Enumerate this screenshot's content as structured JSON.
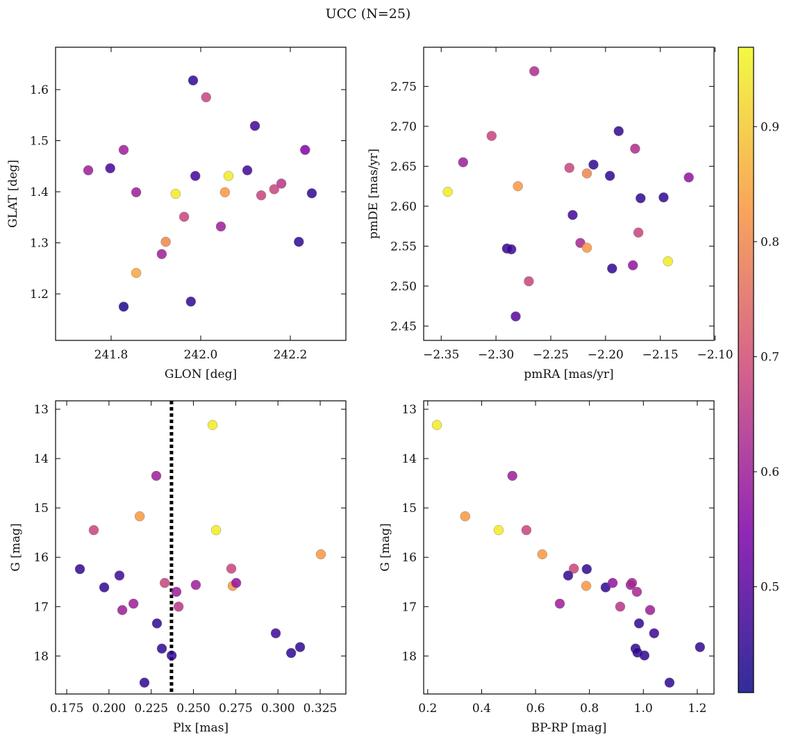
{
  "title": "UCC (N=25)",
  "colorbar": {
    "lim": [
      0.408,
      0.969
    ],
    "ticks": [
      0.5,
      0.6,
      0.7,
      0.8,
      0.9
    ],
    "colormap": "plasma"
  },
  "chart_data": [
    {
      "type": "scatter",
      "xlabel": "GLON [deg]",
      "ylabel": "GLAT [deg]",
      "x": [
        241.749,
        241.798,
        241.828,
        241.856,
        241.828,
        241.856,
        241.913,
        241.922,
        241.944,
        241.963,
        241.983,
        241.988,
        241.978,
        242.012,
        242.045,
        242.054,
        242.062,
        242.104,
        242.121,
        242.135,
        242.164,
        242.18,
        242.219,
        242.233,
        242.248
      ],
      "values": [
        1.442,
        1.446,
        1.482,
        1.399,
        1.175,
        1.241,
        1.278,
        1.302,
        1.396,
        1.351,
        1.618,
        1.431,
        1.185,
        1.585,
        1.332,
        1.399,
        1.431,
        1.442,
        1.529,
        1.393,
        1.405,
        1.416,
        1.302,
        1.482,
        1.397
      ],
      "color_values": [
        0.6,
        0.48,
        0.6,
        0.6,
        0.43,
        0.85,
        0.6,
        0.8,
        0.95,
        0.68,
        0.45,
        0.47,
        0.45,
        0.68,
        0.6,
        0.83,
        0.95,
        0.47,
        0.47,
        0.68,
        0.68,
        0.65,
        0.45,
        0.55,
        0.45
      ],
      "xlim": [
        241.676,
        242.324
      ],
      "ylim": [
        1.109,
        1.683
      ],
      "xticks": [
        241.8,
        {
          "value": 242.0,
          "label": "242.0"
        },
        242.2
      ],
      "yticks": [
        1.2,
        1.3,
        1.4,
        1.5,
        1.6
      ]
    },
    {
      "type": "scatter",
      "xlabel": "pmRA [mas/yr]",
      "ylabel": "pmDE [mas/yr]",
      "x": [
        -2.344,
        -2.33,
        -2.304,
        -2.29,
        -2.286,
        -2.282,
        -2.28,
        -2.27,
        -2.265,
        -2.233,
        -2.23,
        -2.223,
        -2.217,
        -2.217,
        -2.211,
        -2.196,
        -2.194,
        -2.188,
        -2.175,
        -2.173,
        -2.17,
        -2.168,
        -2.147,
        -2.143,
        -2.124
      ],
      "values": [
        2.618,
        2.655,
        2.688,
        2.547,
        2.546,
        2.462,
        2.625,
        2.506,
        2.769,
        2.648,
        2.589,
        2.554,
        2.641,
        2.548,
        2.652,
        2.638,
        2.522,
        2.694,
        2.526,
        2.672,
        2.567,
        2.61,
        2.611,
        2.531,
        2.636
      ],
      "color_values": [
        0.95,
        0.6,
        0.68,
        0.45,
        0.47,
        0.5,
        0.83,
        0.68,
        0.63,
        0.68,
        0.47,
        0.62,
        0.8,
        0.83,
        0.45,
        0.45,
        0.45,
        0.45,
        0.58,
        0.63,
        0.68,
        0.45,
        0.45,
        0.95,
        0.58
      ],
      "xlim": [
        -2.366,
        -2.101
      ],
      "ylim": [
        2.432,
        2.799
      ],
      "xticks": [
        {
          "value": -2.35,
          "label": "−2.35"
        },
        {
          "value": -2.3,
          "label": "−2.30"
        },
        {
          "value": -2.25,
          "label": "−2.25"
        },
        {
          "value": -2.2,
          "label": "−2.20"
        },
        {
          "value": -2.15,
          "label": "−2.15"
        },
        {
          "value": -2.1,
          "label": "−2.10"
        }
      ],
      "yticks": [
        2.45,
        {
          "value": 2.5,
          "label": "2.50"
        },
        2.55,
        {
          "value": 2.6,
          "label": "2.60"
        },
        2.65,
        {
          "value": 2.7,
          "label": "2.70"
        },
        2.75
      ]
    },
    {
      "type": "scatter",
      "xlabel": "Plx [mas]",
      "ylabel": "G [mag]",
      "x": [
        0.1828,
        0.191,
        0.1972,
        0.2062,
        0.2079,
        0.2145,
        0.2182,
        0.221,
        0.228,
        0.2284,
        0.2313,
        0.233,
        0.2371,
        0.2399,
        0.2412,
        0.2514,
        0.2613,
        0.2634,
        0.2724,
        0.2732,
        0.2753,
        0.2987,
        0.3078,
        0.3131,
        0.3254
      ],
      "values": [
        16.24,
        15.45,
        16.61,
        16.37,
        17.07,
        16.94,
        15.17,
        18.54,
        14.35,
        17.34,
        17.85,
        16.52,
        17.99,
        16.7,
        17.0,
        16.56,
        13.32,
        15.45,
        16.23,
        16.58,
        16.52,
        17.54,
        17.94,
        17.82,
        15.94
      ],
      "color_values": [
        0.45,
        0.68,
        0.45,
        0.47,
        0.6,
        0.6,
        0.83,
        0.45,
        0.6,
        0.45,
        0.45,
        0.68,
        0.45,
        0.6,
        0.65,
        0.6,
        0.95,
        0.95,
        0.68,
        0.83,
        0.58,
        0.47,
        0.45,
        0.45,
        0.83
      ],
      "xlim": [
        0.1684,
        0.3402
      ],
      "ylim": [
        18.77,
        12.83
      ],
      "xticks": [
        0.175,
        {
          "value": 0.2,
          "label": "0.200"
        },
        0.225,
        {
          "value": 0.25,
          "label": "0.250"
        },
        0.275,
        {
          "value": 0.3,
          "label": "0.300"
        },
        0.325
      ],
      "yticks": [
        13,
        14,
        15,
        16,
        17,
        18
      ],
      "vline": {
        "x": 0.237,
        "style": "dotted",
        "color": "#000000"
      }
    },
    {
      "type": "scatter",
      "xlabel": "BP-RP [mag]",
      "ylabel": "G [mag]",
      "x": [
        0.234,
        0.339,
        0.463,
        0.514,
        0.566,
        0.625,
        0.69,
        0.742,
        0.721,
        0.79,
        0.788,
        0.86,
        0.886,
        0.914,
        0.953,
        0.958,
        0.976,
        0.984,
        0.971,
        0.978,
        1.004,
        1.025,
        1.04,
        1.097,
        1.21
      ],
      "values": [
        13.32,
        15.17,
        15.45,
        14.35,
        15.45,
        15.94,
        16.94,
        16.23,
        16.37,
        16.24,
        16.58,
        16.61,
        16.52,
        17.0,
        16.56,
        16.52,
        16.7,
        17.34,
        17.85,
        17.93,
        17.99,
        17.07,
        17.54,
        18.54,
        17.82
      ],
      "color_values": [
        0.95,
        0.83,
        0.95,
        0.6,
        0.68,
        0.83,
        0.6,
        0.68,
        0.45,
        0.45,
        0.83,
        0.45,
        0.58,
        0.65,
        0.6,
        0.62,
        0.62,
        0.45,
        0.45,
        0.45,
        0.45,
        0.6,
        0.47,
        0.45,
        0.45
      ],
      "xlim": [
        0.185,
        1.262
      ],
      "ylim": [
        18.77,
        12.83
      ],
      "xticks": [
        0.2,
        0.4,
        0.6,
        0.8,
        {
          "value": 1.0,
          "label": "1.0"
        },
        1.2
      ],
      "yticks": [
        13,
        14,
        15,
        16,
        17,
        18
      ]
    }
  ]
}
